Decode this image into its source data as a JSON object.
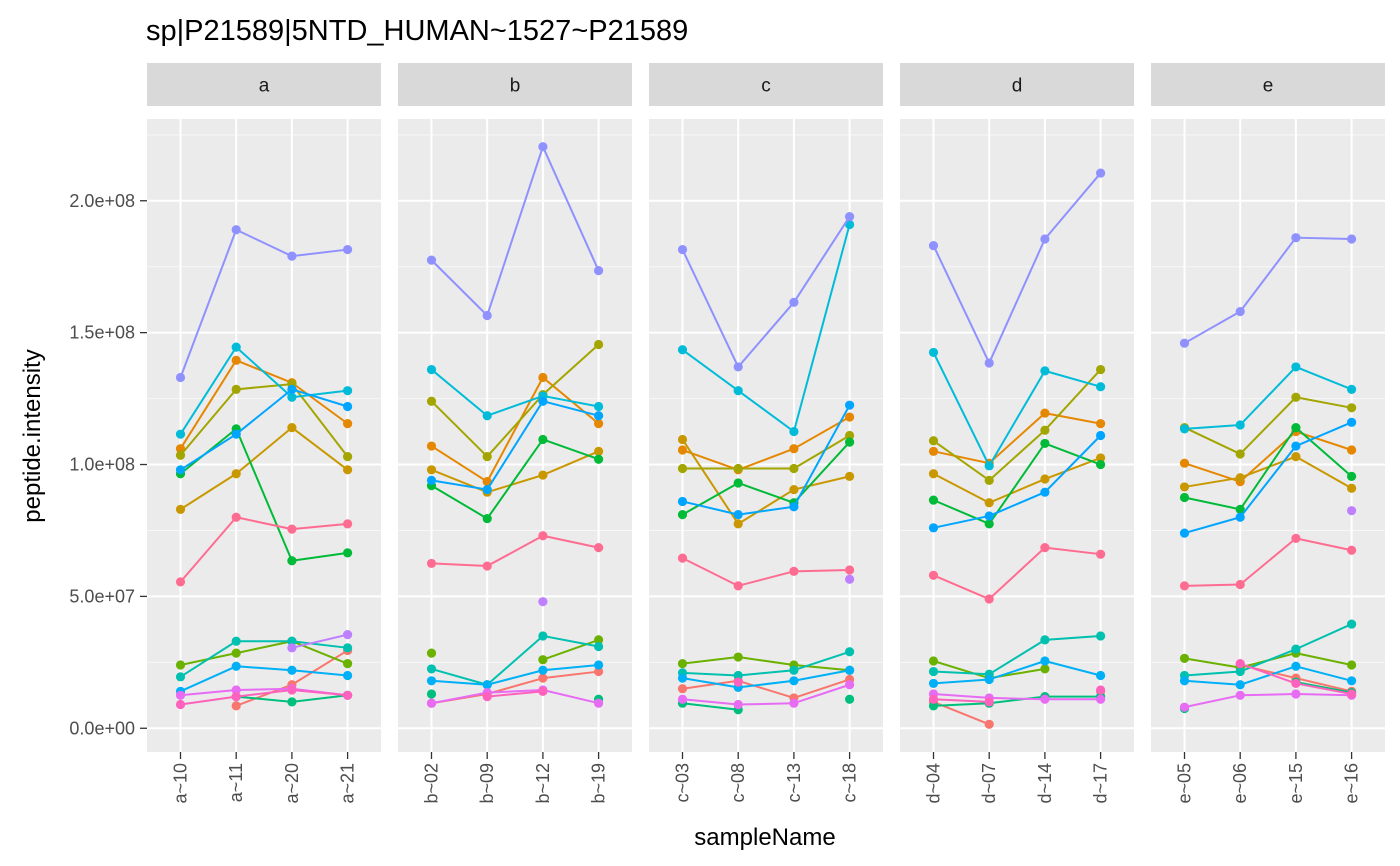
{
  "chart_data": {
    "type": "line",
    "title": "sp|P21589|5NTD_HUMAN~1527~P21589",
    "xlabel": "sampleName",
    "ylabel": "peptide.intensity",
    "ylim": [
      -9000000,
      231000000
    ],
    "yticks": [
      0,
      50000000,
      100000000,
      150000000,
      200000000
    ],
    "ytick_labels": [
      "0.0e+00",
      "5.0e+07",
      "1.0e+08",
      "1.5e+08",
      "2.0e+08"
    ],
    "grid": true,
    "legend": "none",
    "facets": [
      {
        "label": "a",
        "categories": [
          "a~10",
          "a~11",
          "a~20",
          "a~21"
        ]
      },
      {
        "label": "b",
        "categories": [
          "b~02",
          "b~09",
          "b~12",
          "b~19"
        ]
      },
      {
        "label": "c",
        "categories": [
          "c~03",
          "c~08",
          "c~13",
          "c~18"
        ]
      },
      {
        "label": "d",
        "categories": [
          "d~04",
          "d~07",
          "d~14",
          "d~17"
        ]
      },
      {
        "label": "e",
        "categories": [
          "e~05",
          "e~06",
          "e~15",
          "e~16"
        ]
      }
    ],
    "series": [
      {
        "color": "#F8766D",
        "values": [
          [
            null,
            8500000,
            16500000,
            29500000
          ],
          [
            9500000,
            13000000,
            19000000,
            21500000
          ],
          [
            15000000,
            18000000,
            11500000,
            18500000
          ],
          [
            10000000,
            1500000,
            null,
            14000000
          ],
          [
            null,
            24000000,
            19000000,
            14000000
          ]
        ]
      },
      {
        "color": "#E58700",
        "values": [
          [
            106000000,
            139500000,
            131000000,
            115500000
          ],
          [
            107000000,
            93500000,
            133000000,
            115500000
          ],
          [
            105500000,
            98000000,
            106000000,
            118000000
          ],
          [
            105000000,
            100500000,
            119500000,
            115500000
          ],
          [
            100500000,
            93500000,
            112500000,
            105500000
          ]
        ]
      },
      {
        "color": "#C99800",
        "values": [
          [
            83000000,
            96500000,
            114000000,
            98000000
          ],
          [
            98000000,
            89500000,
            96000000,
            105000000
          ],
          [
            109500000,
            77500000,
            90500000,
            95500000
          ],
          [
            96500000,
            85500000,
            94500000,
            102500000
          ],
          [
            91500000,
            95000000,
            103000000,
            91000000
          ]
        ]
      },
      {
        "color": "#A3A500",
        "values": [
          [
            103500000,
            128500000,
            130500000,
            103000000
          ],
          [
            124000000,
            103000000,
            126500000,
            145500000
          ],
          [
            98500000,
            98500000,
            98500000,
            111000000
          ],
          [
            109000000,
            94000000,
            113000000,
            136000000
          ],
          [
            114000000,
            104000000,
            125500000,
            121500000
          ]
        ]
      },
      {
        "color": "#6BB100",
        "values": [
          [
            24000000,
            28500000,
            33000000,
            24500000
          ],
          [
            28500000,
            null,
            26000000,
            33500000
          ],
          [
            24500000,
            27000000,
            24000000,
            22000000
          ],
          [
            25500000,
            19000000,
            22500000,
            null
          ],
          [
            26500000,
            23000000,
            28500000,
            24000000
          ]
        ]
      },
      {
        "color": "#00BA38",
        "values": [
          [
            96500000,
            113500000,
            63500000,
            66500000
          ],
          [
            92000000,
            79500000,
            109500000,
            102000000
          ],
          [
            81000000,
            93000000,
            85500000,
            108500000
          ],
          [
            86500000,
            77500000,
            108000000,
            100000000
          ],
          [
            87500000,
            83000000,
            114000000,
            95500000
          ]
        ]
      },
      {
        "color": "#00BF7D",
        "values": [
          [
            null,
            12000000,
            10000000,
            12500000
          ],
          [
            13000000,
            null,
            null,
            11000000
          ],
          [
            9500000,
            7000000,
            null,
            11000000
          ],
          [
            8500000,
            9500000,
            12000000,
            12000000
          ],
          [
            7500000,
            null,
            17500000,
            13500000
          ]
        ]
      },
      {
        "color": "#00C0AF",
        "values": [
          [
            19500000,
            33000000,
            33000000,
            30500000
          ],
          [
            22500000,
            16500000,
            35000000,
            31000000
          ],
          [
            21000000,
            20000000,
            22000000,
            29000000
          ],
          [
            21500000,
            20500000,
            33500000,
            35000000
          ],
          [
            20000000,
            21500000,
            30000000,
            39500000
          ]
        ]
      },
      {
        "color": "#00BCD8",
        "values": [
          [
            111500000,
            144500000,
            125500000,
            128000000
          ],
          [
            136000000,
            118500000,
            126000000,
            122000000
          ],
          [
            143500000,
            128000000,
            112500000,
            191000000
          ],
          [
            142500000,
            99500000,
            135500000,
            129500000
          ],
          [
            113500000,
            115000000,
            137000000,
            128500000
          ]
        ]
      },
      {
        "color": "#00B0F6",
        "values": [
          [
            14000000,
            23500000,
            22000000,
            20000000
          ],
          [
            18000000,
            16500000,
            22000000,
            24000000
          ],
          [
            19000000,
            15500000,
            18000000,
            22000000
          ],
          [
            17000000,
            18500000,
            25500000,
            20000000
          ],
          [
            18000000,
            16500000,
            23500000,
            18000000
          ]
        ]
      },
      {
        "color": "#00A5FF",
        "values": [
          [
            98000000,
            111500000,
            128500000,
            122000000
          ],
          [
            94000000,
            90500000,
            124000000,
            118500000
          ],
          [
            86000000,
            81000000,
            84000000,
            122500000
          ],
          [
            76000000,
            80500000,
            89500000,
            111000000
          ],
          [
            74000000,
            80000000,
            107000000,
            116000000
          ]
        ]
      },
      {
        "color": "#8F91FF",
        "values": [
          [
            133000000,
            189000000,
            179000000,
            181500000
          ],
          [
            177500000,
            156500000,
            220500000,
            173500000
          ],
          [
            181500000,
            137000000,
            161500000,
            194000000
          ],
          [
            183000000,
            138500000,
            185500000,
            210500000
          ],
          [
            146000000,
            158000000,
            186000000,
            185500000
          ]
        ]
      },
      {
        "color": "#BF80FF",
        "values": [
          [
            null,
            null,
            30500000,
            35500000
          ],
          [
            null,
            null,
            48000000,
            null
          ],
          [
            null,
            null,
            null,
            56500000
          ],
          [
            null,
            null,
            null,
            null
          ],
          [
            null,
            null,
            null,
            82500000
          ]
        ]
      },
      {
        "color": "#E76BF3",
        "values": [
          [
            12500000,
            14500000,
            15000000,
            12500000
          ],
          [
            9500000,
            13500000,
            14500000,
            9500000
          ],
          [
            11000000,
            9000000,
            9500000,
            16500000
          ],
          [
            13000000,
            11500000,
            11000000,
            11000000
          ],
          [
            8000000,
            12500000,
            13000000,
            12500000
          ]
        ]
      },
      {
        "color": "#FF62BC",
        "values": [
          [
            9000000,
            12000000,
            14500000,
            12500000
          ],
          [
            null,
            12000000,
            14000000,
            null
          ],
          [
            null,
            17500000,
            null,
            null
          ],
          [
            11000000,
            10000000,
            null,
            14500000
          ],
          [
            null,
            24500000,
            17000000,
            13000000
          ]
        ]
      },
      {
        "color": "#FF6C91",
        "values": [
          [
            55500000,
            80000000,
            75500000,
            77500000
          ],
          [
            62500000,
            61500000,
            73000000,
            68500000
          ],
          [
            64500000,
            54000000,
            59500000,
            60000000
          ],
          [
            58000000,
            49000000,
            68500000,
            66000000
          ],
          [
            54000000,
            54500000,
            72000000,
            67500000
          ]
        ]
      }
    ]
  }
}
